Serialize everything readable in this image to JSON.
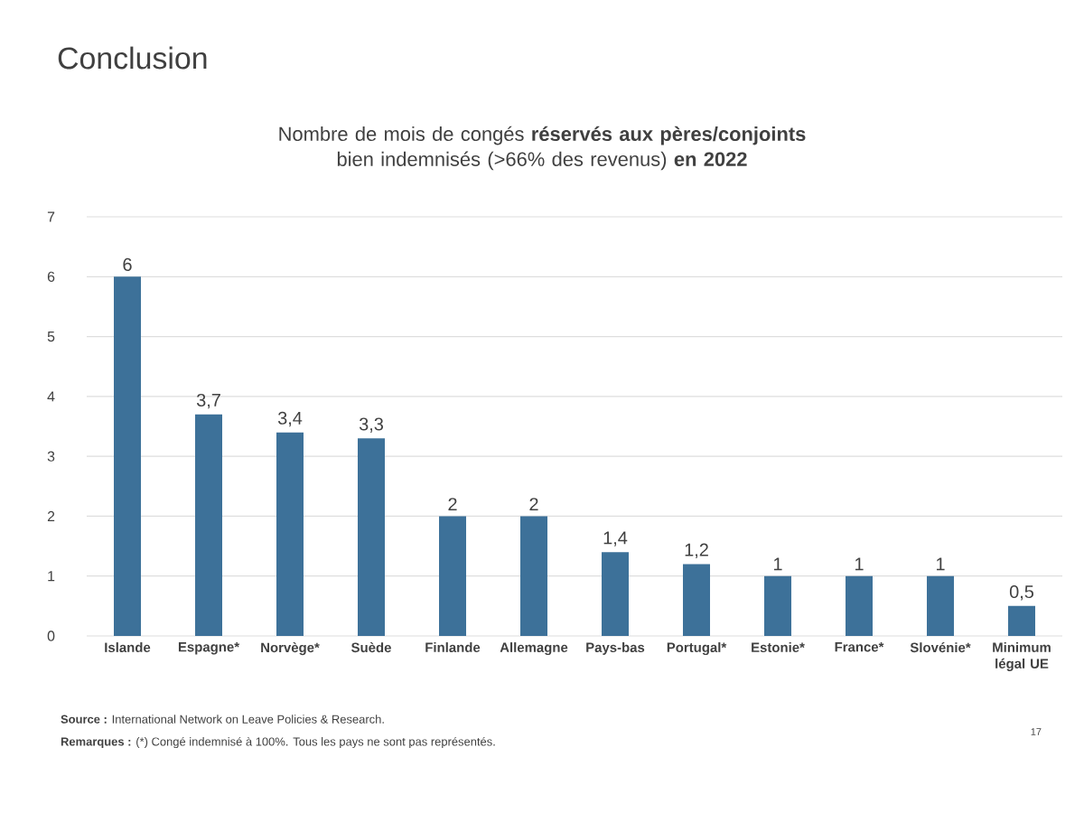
{
  "chart_data": {
    "type": "bar",
    "title": "Conclusion",
    "subtitle": "Nombre de mois de congés **réservés aux pères/conjoints** bien indemnisés (>66% des revenus) **en 2022**",
    "categories": [
      "Islande",
      "Espagne*",
      "Norvège*",
      "Suède",
      "Finlande",
      "Allemagne",
      "Pays-bas",
      "Portugal*",
      "Estonie*",
      "France*",
      "Slovénie*",
      "Minimum légal UE"
    ],
    "values": [
      6,
      3.7,
      3.4,
      3.3,
      2,
      2,
      1.4,
      1.2,
      1,
      1,
      1,
      0.5
    ],
    "value_labels": [
      "6",
      "3,7",
      "3,4",
      "3,3",
      "2",
      "2",
      "1,4",
      "1,2",
      "1",
      "1",
      "1",
      "0,5"
    ],
    "color": "#3d7199",
    "ylim": [
      0,
      7
    ],
    "yticks": [
      0,
      1,
      2,
      3,
      4,
      5,
      6,
      7
    ],
    "grid": "y",
    "annotations": [
      "**Source :** International Network on Leave Policies & Research.",
      "**Remarques :** (*) Congé indemnisé à 100%.  Tous les pays ne sont pas représentés.",
      "17"
    ]
  }
}
